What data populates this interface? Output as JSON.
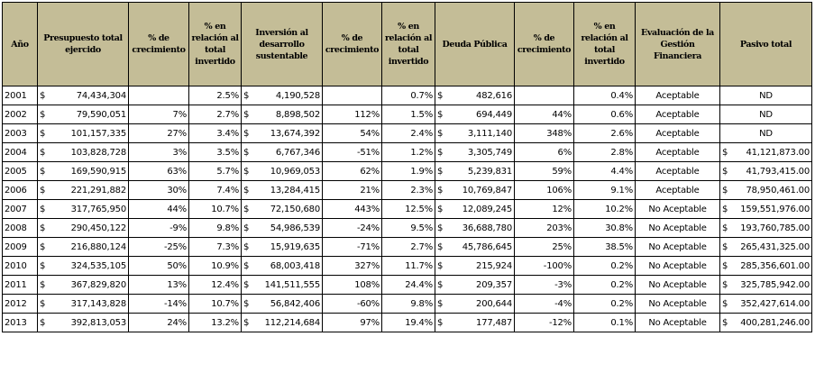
{
  "headers": [
    "Año",
    "Presupuesto total ejercido",
    "% de crecimiento",
    "% en relación al total invertido",
    "Inversión al desarrollo sustentable",
    "% de crecimiento",
    "% en relación al total invertido",
    "Deuda Pública",
    "% de crecimiento",
    "% en relación al total invertido",
    "Evaluación de la Gestión Financiera",
    "Pasivo total"
  ],
  "currency_symbol": "$",
  "rows": [
    {
      "year": "2001",
      "budget": "74,434,304",
      "budget_growth": "",
      "budget_pct": "2.5%",
      "inv": "4,190,528",
      "inv_growth": "",
      "inv_pct": "0.7%",
      "debt": "482,616",
      "debt_growth": "",
      "debt_pct": "0.4%",
      "eval": "Aceptable",
      "liab_cur": "",
      "liab": "ND"
    },
    {
      "year": "2002",
      "budget": "79,590,051",
      "budget_growth": "7%",
      "budget_pct": "2.7%",
      "inv": "8,898,502",
      "inv_growth": "112%",
      "inv_pct": "1.5%",
      "debt": "694,449",
      "debt_growth": "44%",
      "debt_pct": "0.6%",
      "eval": "Aceptable",
      "liab_cur": "",
      "liab": "ND"
    },
    {
      "year": "2003",
      "budget": "101,157,335",
      "budget_growth": "27%",
      "budget_pct": "3.4%",
      "inv": "13,674,392",
      "inv_growth": "54%",
      "inv_pct": "2.4%",
      "debt": "3,111,140",
      "debt_growth": "348%",
      "debt_pct": "2.6%",
      "eval": "Aceptable",
      "liab_cur": "",
      "liab": "ND"
    },
    {
      "year": "2004",
      "budget": "103,828,728",
      "budget_growth": "3%",
      "budget_pct": "3.5%",
      "inv": "6,767,346",
      "inv_growth": "-51%",
      "inv_pct": "1.2%",
      "debt": "3,305,749",
      "debt_growth": "6%",
      "debt_pct": "2.8%",
      "eval": "Aceptable",
      "liab_cur": "$",
      "liab": "41,121,873.00"
    },
    {
      "year": "2005",
      "budget": "169,590,915",
      "budget_growth": "63%",
      "budget_pct": "5.7%",
      "inv": "10,969,053",
      "inv_growth": "62%",
      "inv_pct": "1.9%",
      "debt": "5,239,831",
      "debt_growth": "59%",
      "debt_pct": "4.4%",
      "eval": "Aceptable",
      "liab_cur": "$",
      "liab": "41,793,415.00"
    },
    {
      "year": "2006",
      "budget": "221,291,882",
      "budget_growth": "30%",
      "budget_pct": "7.4%",
      "inv": "13,284,415",
      "inv_growth": "21%",
      "inv_pct": "2.3%",
      "debt": "10,769,847",
      "debt_growth": "106%",
      "debt_pct": "9.1%",
      "eval": "Aceptable",
      "liab_cur": "$",
      "liab": "78,950,461.00"
    },
    {
      "year": "2007",
      "budget": "317,765,950",
      "budget_growth": "44%",
      "budget_pct": "10.7%",
      "inv": "72,150,680",
      "inv_growth": "443%",
      "inv_pct": "12.5%",
      "debt": "12,089,245",
      "debt_growth": "12%",
      "debt_pct": "10.2%",
      "eval": "No Aceptable",
      "liab_cur": "$",
      "liab": "159,551,976.00"
    },
    {
      "year": "2008",
      "budget": "290,450,122",
      "budget_growth": "-9%",
      "budget_pct": "9.8%",
      "inv": "54,986,539",
      "inv_growth": "-24%",
      "inv_pct": "9.5%",
      "debt": "36,688,780",
      "debt_growth": "203%",
      "debt_pct": "30.8%",
      "eval": "No Aceptable",
      "liab_cur": "$",
      "liab": "193,760,785.00"
    },
    {
      "year": "2009",
      "budget": "216,880,124",
      "budget_growth": "-25%",
      "budget_pct": "7.3%",
      "inv": "15,919,635",
      "inv_growth": "-71%",
      "inv_pct": "2.7%",
      "debt": "45,786,645",
      "debt_growth": "25%",
      "debt_pct": "38.5%",
      "eval": "No Aceptable",
      "liab_cur": "$",
      "liab": "265,431,325.00"
    },
    {
      "year": "2010",
      "budget": "324,535,105",
      "budget_growth": "50%",
      "budget_pct": "10.9%",
      "inv": "68,003,418",
      "inv_growth": "327%",
      "inv_pct": "11.7%",
      "debt": "215,924",
      "debt_growth": "-100%",
      "debt_pct": "0.2%",
      "eval": "No Aceptable",
      "liab_cur": "$",
      "liab": "285,356,601.00"
    },
    {
      "year": "2011",
      "budget": "367,829,820",
      "budget_growth": "13%",
      "budget_pct": "12.4%",
      "inv": "141,511,555",
      "inv_growth": "108%",
      "inv_pct": "24.4%",
      "debt": "209,357",
      "debt_growth": "-3%",
      "debt_pct": "0.2%",
      "eval": "No Aceptable",
      "liab_cur": "$",
      "liab": "325,785,942.00"
    },
    {
      "year": "2012",
      "budget": "317,143,828",
      "budget_growth": "-14%",
      "budget_pct": "10.7%",
      "inv": "56,842,406",
      "inv_growth": "-60%",
      "inv_pct": "9.8%",
      "debt": "200,644",
      "debt_growth": "-4%",
      "debt_pct": "0.2%",
      "eval": "No Aceptable",
      "liab_cur": "$",
      "liab": "352,427,614.00"
    },
    {
      "year": "2013",
      "budget": "392,813,053",
      "budget_growth": "24%",
      "budget_pct": "13.2%",
      "inv": "112,214,684",
      "inv_growth": "97%",
      "inv_pct": "19.4%",
      "debt": "177,487",
      "debt_growth": "-12%",
      "debt_pct": "0.1%",
      "eval": "No Aceptable",
      "liab_cur": "$",
      "liab": "400,281,246.00"
    }
  ]
}
